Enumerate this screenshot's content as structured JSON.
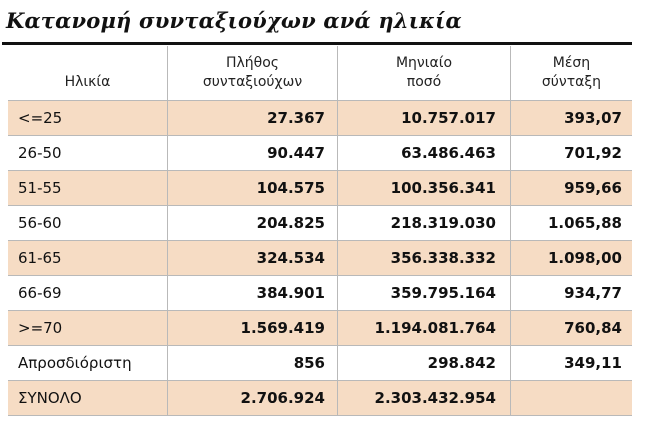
{
  "title": "Κατανομή συνταξιούχων ανά ηλικία",
  "table": {
    "headers": [
      "Ηλικία",
      "Πλήθος\nσυνταξιούχων",
      "Μηνιαίο\nποσό",
      "Μέση\nσύνταξη"
    ],
    "rows": [
      {
        "age": "<=25",
        "count": "27.367",
        "amount": "10.757.017",
        "avg": "393,07"
      },
      {
        "age": "26-50",
        "count": "90.447",
        "amount": "63.486.463",
        "avg": "701,92"
      },
      {
        "age": "51-55",
        "count": "104.575",
        "amount": "100.356.341",
        "avg": "959,66"
      },
      {
        "age": "56-60",
        "count": "204.825",
        "amount": "218.319.030",
        "avg": "1.065,88"
      },
      {
        "age": "61-65",
        "count": "324.534",
        "amount": "356.338.332",
        "avg": "1.098,00"
      },
      {
        "age": "66-69",
        "count": "384.901",
        "amount": "359.795.164",
        "avg": "934,77"
      },
      {
        "age": ">=70",
        "count": "1.569.419",
        "amount": "1.194.081.764",
        "avg": "760,84"
      },
      {
        "age": "Απροσδιόριστη",
        "count": "856",
        "amount": "298.842",
        "avg": "349,11"
      },
      {
        "age": "ΣΥΝΟΛΟ",
        "count": "2.706.924",
        "amount": "2.303.432.954",
        "avg": ""
      }
    ]
  },
  "colors": {
    "row_shade": "#f6dcc4",
    "grid_line": "#b9b9b9",
    "text": "#111111"
  }
}
